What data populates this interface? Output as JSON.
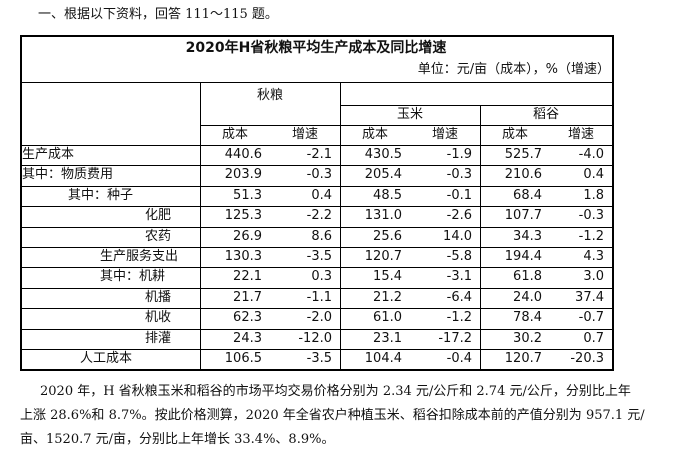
{
  "intro": "一、根据以下资料，回答 111～115 题。",
  "table": {
    "title": "2020年H省秋粮平均生产成本及同比增速",
    "unit": "单位：元/亩（成本），%（增速）",
    "groups": [
      "秋粮",
      "玉米",
      "稻谷"
    ],
    "subheaders": [
      "成本",
      "增速",
      "成本",
      "增速",
      "成本",
      "增速"
    ],
    "rows": [
      [
        "生产成本",
        "440.6",
        "-2.1",
        "430.5",
        "-1.9",
        "525.7",
        "-4.0"
      ],
      [
        "其中：物质费用",
        "203.9",
        "-0.3",
        "205.4",
        "-0.3",
        "210.6",
        "0.4"
      ],
      [
        "其中：种子",
        "51.3",
        "0.4",
        "48.5",
        "-0.1",
        "68.4",
        "1.8"
      ],
      [
        "化肥",
        "125.3",
        "-2.2",
        "131.0",
        "-2.6",
        "107.7",
        "-0.3"
      ],
      [
        "农药",
        "26.9",
        "8.6",
        "25.6",
        "14.0",
        "34.3",
        "-1.2"
      ],
      [
        "生产服务支出",
        "130.3",
        "-3.5",
        "120.7",
        "-5.8",
        "194.4",
        "4.3"
      ],
      [
        "其中：机耕",
        "22.1",
        "0.3",
        "15.4",
        "-3.1",
        "61.8",
        "3.0"
      ],
      [
        "机播",
        "21.7",
        "-1.1",
        "21.2",
        "-6.4",
        "24.0",
        "37.4"
      ],
      [
        "机收",
        "62.3",
        "-2.0",
        "61.0",
        "-1.2",
        "78.4",
        "-0.7"
      ],
      [
        "排灌",
        "24.3",
        "-12.0",
        "23.1",
        "-17.2",
        "30.2",
        "0.7"
      ],
      [
        "人工成本",
        "106.5",
        "-3.5",
        "104.4",
        "-0.4",
        "120.7",
        "-20.3"
      ]
    ]
  },
  "paragraph": [
    "2020 年，H 省秋粮玉米和稻谷的市场平均交易价格分别为 2.34 元/公斤和 2.74 元/公斤，分别比上年",
    "上涨 28.6%和 8.7%。按此价格测算，2020 年全省农户种植玉米、稻谷扣除成本前的产值分别为 957.1 元/",
    "亩、1520.7 元/亩，分别比上年增长 33.4%、8.9%。"
  ]
}
